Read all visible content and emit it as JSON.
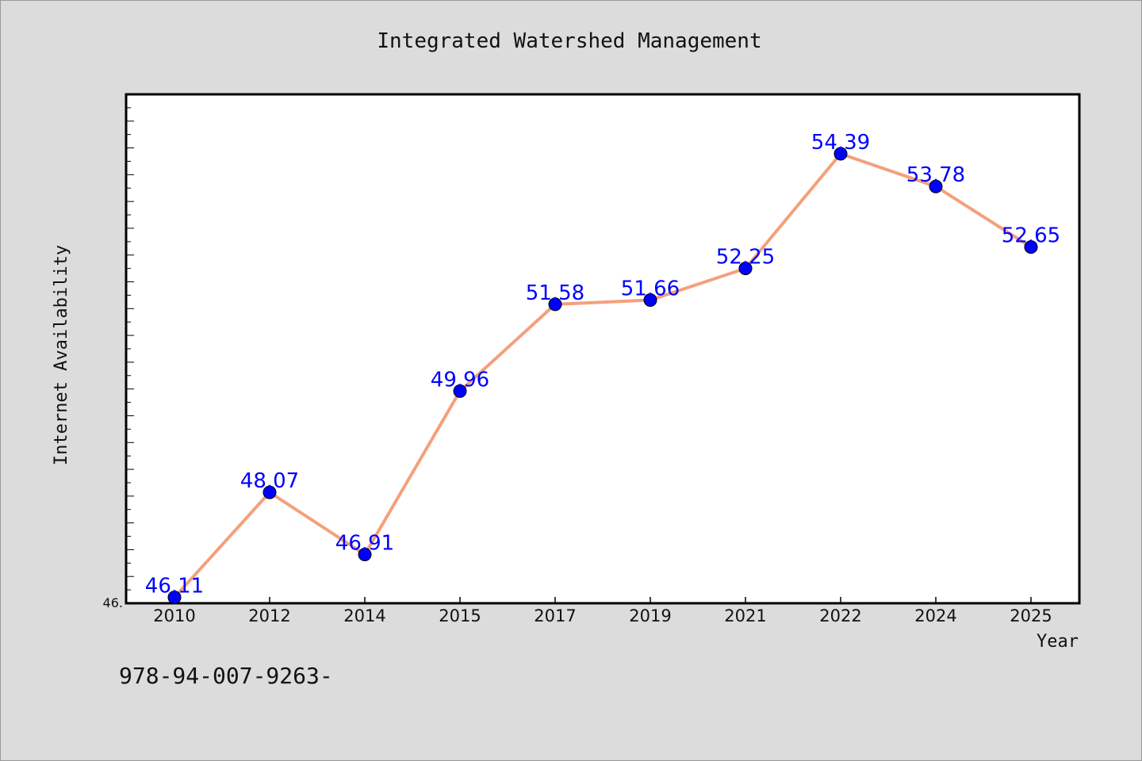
{
  "chart_data": {
    "type": "line",
    "title": "Integrated Watershed Management",
    "xlabel": "Year",
    "ylabel": "Internet Availability",
    "categories": [
      "2010",
      "2012",
      "2014",
      "2015",
      "2017",
      "2019",
      "2021",
      "2022",
      "2024",
      "2025"
    ],
    "series": [
      {
        "values": [
          46.11,
          48.07,
          46.91,
          49.96,
          51.58,
          51.66,
          52.25,
          54.39,
          53.78,
          52.65
        ]
      }
    ],
    "data_labels": [
      "46.11",
      "48.07",
      "46.91",
      "49.96",
      "51.58",
      "51.66",
      "52.25",
      "54.39",
      "53.78",
      "52.65"
    ],
    "ylim": [
      46.0,
      55.5
    ],
    "y_tick_label": "46.",
    "grid": false,
    "legend": "none",
    "colors": {
      "line": "#f4a07c",
      "marker": "#0000ff",
      "data_label": "#0000ff",
      "plot_background": "#ffffff",
      "figure_background": "#dcdcdc"
    }
  },
  "footer": {
    "isbn": "978-94-007-9263-"
  }
}
